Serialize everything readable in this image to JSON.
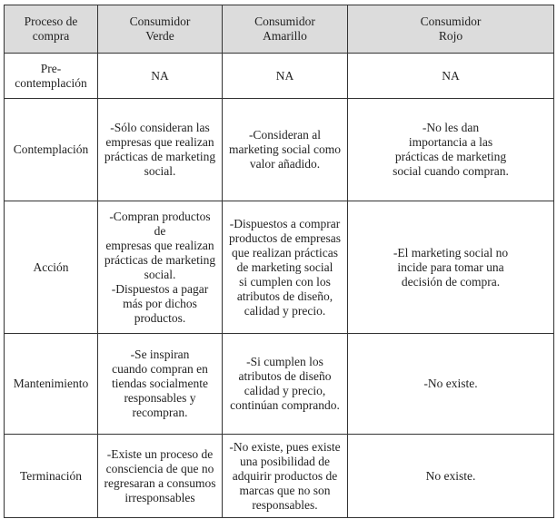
{
  "headers": [
    "Proceso de\ncompra",
    "Consumidor\nVerde",
    "Consumidor\nAmarillo",
    "Consumidor\nRojo"
  ],
  "rows": [
    {
      "stage": "Pre-\ncontemplación",
      "verde": "NA",
      "amarillo": "NA",
      "rojo": "NA"
    },
    {
      "stage": "Contemplación",
      "verde": "-Sólo consideran las\nempresas que realizan\nprácticas de marketing\nsocial.",
      "amarillo": "-Consideran al\nmarketing social como\nvalor añadido.",
      "rojo": "-No les dan\nimportancia a las\nprácticas de marketing\nsocial cuando compran."
    },
    {
      "stage": "Acción",
      "verde": "-Compran productos de\nempresas que realizan\nprácticas de marketing\nsocial.\n-Dispuestos a pagar\nmás por dichos\nproductos.",
      "amarillo": "-Dispuestos a comprar\nproductos de empresas\nque realizan prácticas\nde marketing social\nsi cumplen con los\natributos de diseño,\ncalidad y precio.",
      "rojo": "-El marketing social no\nincide para tomar una\ndecisión de compra."
    },
    {
      "stage": "Mantenimiento",
      "verde": "-Se inspiran\ncuando compran en\ntiendas socialmente\nresponsables y\nrecompran.",
      "amarillo": "-Si cumplen los\natributos de diseño\ncalidad y precio,\ncontinúan comprando.",
      "rojo": "-No existe."
    },
    {
      "stage": "Terminación",
      "verde": "-Existe un proceso de\nconsciencia de que no\nregresaran a consumos\nirresponsables",
      "amarillo": "-No existe, pues existe\nuna posibilidad de\nadquirir productos de\nmarcas que no son\nresponsables.",
      "rojo": "No existe."
    }
  ]
}
